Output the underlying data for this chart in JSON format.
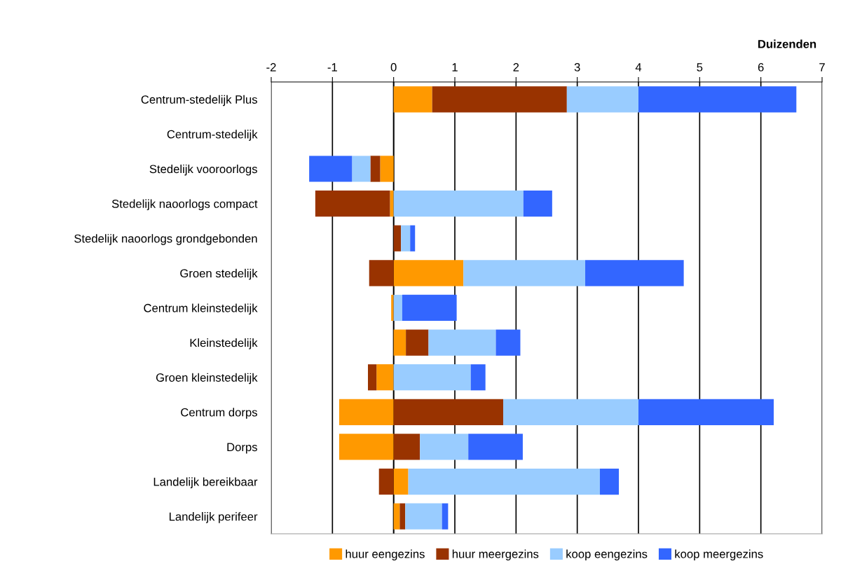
{
  "chart_data": {
    "type": "bar",
    "orientation": "horizontal",
    "stacked": true,
    "xlabel": "Duizenden",
    "categories": [
      "Centrum-stedelijk Plus",
      "Centrum-stedelijk",
      "Stedelijk vooroorlogs",
      "Stedelijk naoorlogs compact",
      "Stedelijk naoorlogs grondgebonden",
      "Groen stedelijk",
      "Centrum kleinstedelijk",
      "Kleinstedelijk",
      "Groen kleinstedelijk",
      "Centrum dorps",
      "Dorps",
      "Landelijk bereikbaar",
      "Landelijk perifeer"
    ],
    "series": [
      {
        "name": "huur eengezins",
        "color": "#ff9900",
        "values": [
          0.63,
          null,
          -0.22,
          -0.06,
          0,
          1.14,
          -0.04,
          0.2,
          -0.28,
          -0.89,
          -0.89,
          0.24,
          0.1
        ]
      },
      {
        "name": "huur meergezins",
        "color": "#993300",
        "values": [
          2.2,
          null,
          -0.16,
          -1.22,
          0.12,
          -0.4,
          0,
          0.37,
          -0.14,
          1.79,
          0.43,
          -0.24,
          0.09
        ]
      },
      {
        "name": "koop eengezins",
        "color": "#99ccff",
        "values": [
          1.17,
          null,
          -0.3,
          2.12,
          0.15,
          1.99,
          0.14,
          1.1,
          1.26,
          2.21,
          0.79,
          3.13,
          0.6
        ]
      },
      {
        "name": "koop meergezins",
        "color": "#3366ff",
        "values": [
          2.58,
          null,
          -0.7,
          0.47,
          0.08,
          1.61,
          0.89,
          0.4,
          0.24,
          2.21,
          0.89,
          0.31,
          0.1
        ]
      }
    ],
    "xlim": [
      -2,
      7
    ],
    "xticks": [
      -2,
      -1,
      0,
      1,
      2,
      3,
      4,
      5,
      6,
      7
    ],
    "grid": "x",
    "legend": "bottom"
  }
}
